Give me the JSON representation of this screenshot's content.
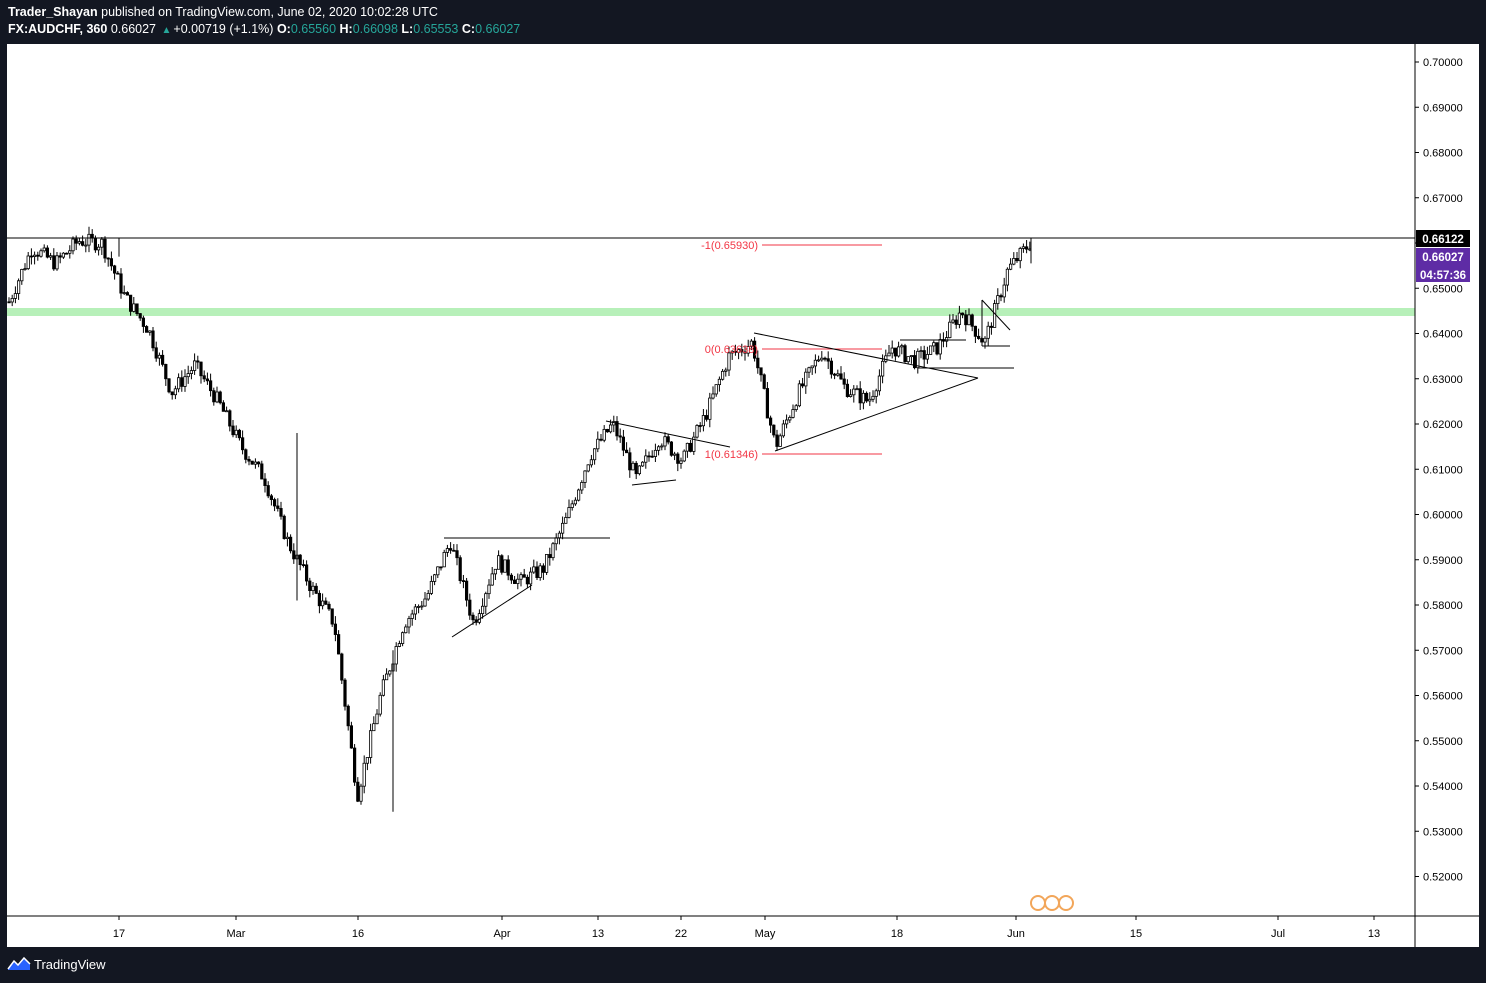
{
  "header": {
    "publisher": "Trader_Shayan",
    "published_text": "published on TradingView.com, June 02, 2020 10:02:28 UTC",
    "symbol": "FX:AUDCHF, 360",
    "last": "0.66027",
    "change": "+0.00719 (+1.1%)",
    "o_label": "O:",
    "o_value": "0.65560",
    "h_label": "H:",
    "h_value": "0.66098",
    "l_label": "L:",
    "l_value": "0.65553",
    "c_label": "C:",
    "c_value": "0.66027"
  },
  "footer": {
    "brand": "TradingView"
  },
  "colors": {
    "background": "#ffffff",
    "frame": "#131722",
    "candle": "#000000",
    "fib": "#f23645",
    "zone": "#b7f0b9",
    "current_price_badge": "#5e2ca5",
    "high_badge": "#000000"
  },
  "chart_data": {
    "type": "candlestick",
    "symbol": "FX:AUDCHF",
    "timeframe": "360",
    "ylim": [
      0.512,
      0.704
    ],
    "y_ticks": [
      0.7,
      0.69,
      0.68,
      0.67,
      0.66,
      0.65,
      0.64,
      0.63,
      0.62,
      0.61,
      0.6,
      0.59,
      0.58,
      0.57,
      0.56,
      0.55,
      0.54,
      0.53,
      0.52
    ],
    "x_ticks": [
      "17",
      "Mar",
      "16",
      "Apr",
      "13",
      "22",
      "May",
      "18",
      "Jun",
      "15",
      "Jul",
      "13"
    ],
    "price_path": [
      {
        "x": "Feb 10",
        "price": 0.647
      },
      {
        "x": "Feb 12",
        "price": 0.659
      },
      {
        "x": "Feb 14",
        "price": 0.6555
      },
      {
        "x": "Feb 17",
        "price": 0.6605
      },
      {
        "x": "Feb 20",
        "price": 0.66
      },
      {
        "x": "Feb 24",
        "price": 0.648
      },
      {
        "x": "Feb 28",
        "price": 0.641
      },
      {
        "x": "Mar 3",
        "price": 0.627
      },
      {
        "x": "Mar 5",
        "price": 0.633
      },
      {
        "x": "Mar 9",
        "price": 0.625
      },
      {
        "x": "Mar 10",
        "price": 0.615
      },
      {
        "x": "Mar 13",
        "price": 0.608
      },
      {
        "x": "Mar 16",
        "price": 0.594
      },
      {
        "x": "Mar 17",
        "price": 0.584
      },
      {
        "x": "Mar 18",
        "price": 0.576
      },
      {
        "x": "Mar 19",
        "price": 0.538
      },
      {
        "x": "Mar 20",
        "price": 0.56
      },
      {
        "x": "Mar 23",
        "price": 0.576
      },
      {
        "x": "Mar 24",
        "price": 0.582
      },
      {
        "x": "Mar 25",
        "price": 0.594
      },
      {
        "x": "Mar 26",
        "price": 0.576
      },
      {
        "x": "Mar 30",
        "price": 0.59
      },
      {
        "x": "Apr 2",
        "price": 0.585
      },
      {
        "x": "Apr 6",
        "price": 0.588
      },
      {
        "x": "Apr 9",
        "price": 0.599
      },
      {
        "x": "Apr 13",
        "price": 0.613
      },
      {
        "x": "Apr 15",
        "price": 0.62
      },
      {
        "x": "Apr 17",
        "price": 0.608
      },
      {
        "x": "Apr 20",
        "price": 0.617
      },
      {
        "x": "Apr 22",
        "price": 0.612
      },
      {
        "x": "Apr 24",
        "price": 0.622
      },
      {
        "x": "Apr 29",
        "price": 0.635
      },
      {
        "x": "Apr 30",
        "price": 0.638
      },
      {
        "x": "May 4",
        "price": 0.615
      },
      {
        "x": "May 7",
        "price": 0.627
      },
      {
        "x": "May 11",
        "price": 0.636
      },
      {
        "x": "May 14",
        "price": 0.628
      },
      {
        "x": "May 18",
        "price": 0.625
      },
      {
        "x": "May 20",
        "price": 0.637
      },
      {
        "x": "May 22",
        "price": 0.634
      },
      {
        "x": "May 26",
        "price": 0.637
      },
      {
        "x": "May 27",
        "price": 0.645
      },
      {
        "x": "May 29",
        "price": 0.638
      },
      {
        "x": "Jun 1",
        "price": 0.654
      },
      {
        "x": "Jun 2",
        "price": 0.6603
      }
    ],
    "horizontal_line": 0.66122,
    "support_zone": [
      0.644,
      0.6458
    ],
    "fibonacci": [
      {
        "label": "-1(0.65930)",
        "price": 0.6593
      },
      {
        "label": "0(0.63638)",
        "price": 0.63638
      },
      {
        "label": "1(0.61346)",
        "price": 0.61346
      }
    ],
    "badges": {
      "high": "0.66122",
      "current": "0.66027",
      "countdown": "04:57:36"
    }
  }
}
